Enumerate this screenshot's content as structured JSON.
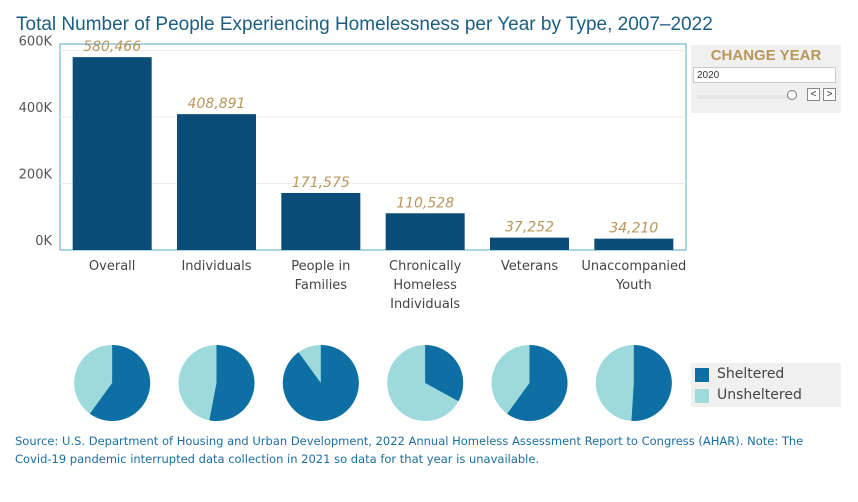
{
  "title": "Total Number of People Experiencing Homelessness per Year by Type, 2007–2022",
  "colors": {
    "bar": "#0b4c78",
    "label": "#b8975a",
    "sheltered": "#0d6fa3",
    "unsheltered": "#9ed9dc",
    "axis": "#5aa7c9"
  },
  "chart_data": [
    {
      "type": "bar",
      "categories": [
        [
          "Overall"
        ],
        [
          "Individuals"
        ],
        [
          "People in",
          "Families"
        ],
        [
          "Chronically",
          "Homeless",
          "Individuals"
        ],
        [
          "Veterans"
        ],
        [
          "Unaccompanied",
          "Youth"
        ]
      ],
      "values": [
        580466,
        408891,
        171575,
        110528,
        37252,
        34210
      ],
      "value_labels": [
        "580,466",
        "408,891",
        "171,575",
        "110,528",
        "37,252",
        "34,210"
      ],
      "yticks": [
        0,
        200000,
        400000,
        600000
      ],
      "ytick_labels": [
        "0K",
        "200K",
        "400K",
        "600K"
      ],
      "ylim": [
        0,
        620000
      ],
      "grid": true
    },
    {
      "type": "pie",
      "groups": [
        "Overall",
        "Individuals",
        "People in Families",
        "Chronically Homeless Individuals",
        "Veterans",
        "Unaccompanied Youth"
      ],
      "sheltered_share": [
        0.6,
        0.53,
        0.9,
        0.33,
        0.6,
        0.51
      ]
    }
  ],
  "year_filter": {
    "title": "CHANGE YEAR",
    "selected": "2020",
    "prev": "<",
    "next": ">",
    "slider_position": 1.0
  },
  "legend": {
    "items": [
      {
        "label": "Sheltered",
        "color": "#0d6fa3"
      },
      {
        "label": "Unsheltered",
        "color": "#9ed9dc"
      }
    ]
  },
  "source": "Source: U.S. Department of Housing and Urban Development, 2022 Annual Homeless Assessment Report to Congress (AHAR). Note: The Covid-19 pandemic interrupted data collection in 2021 so data for that year is unavailable."
}
